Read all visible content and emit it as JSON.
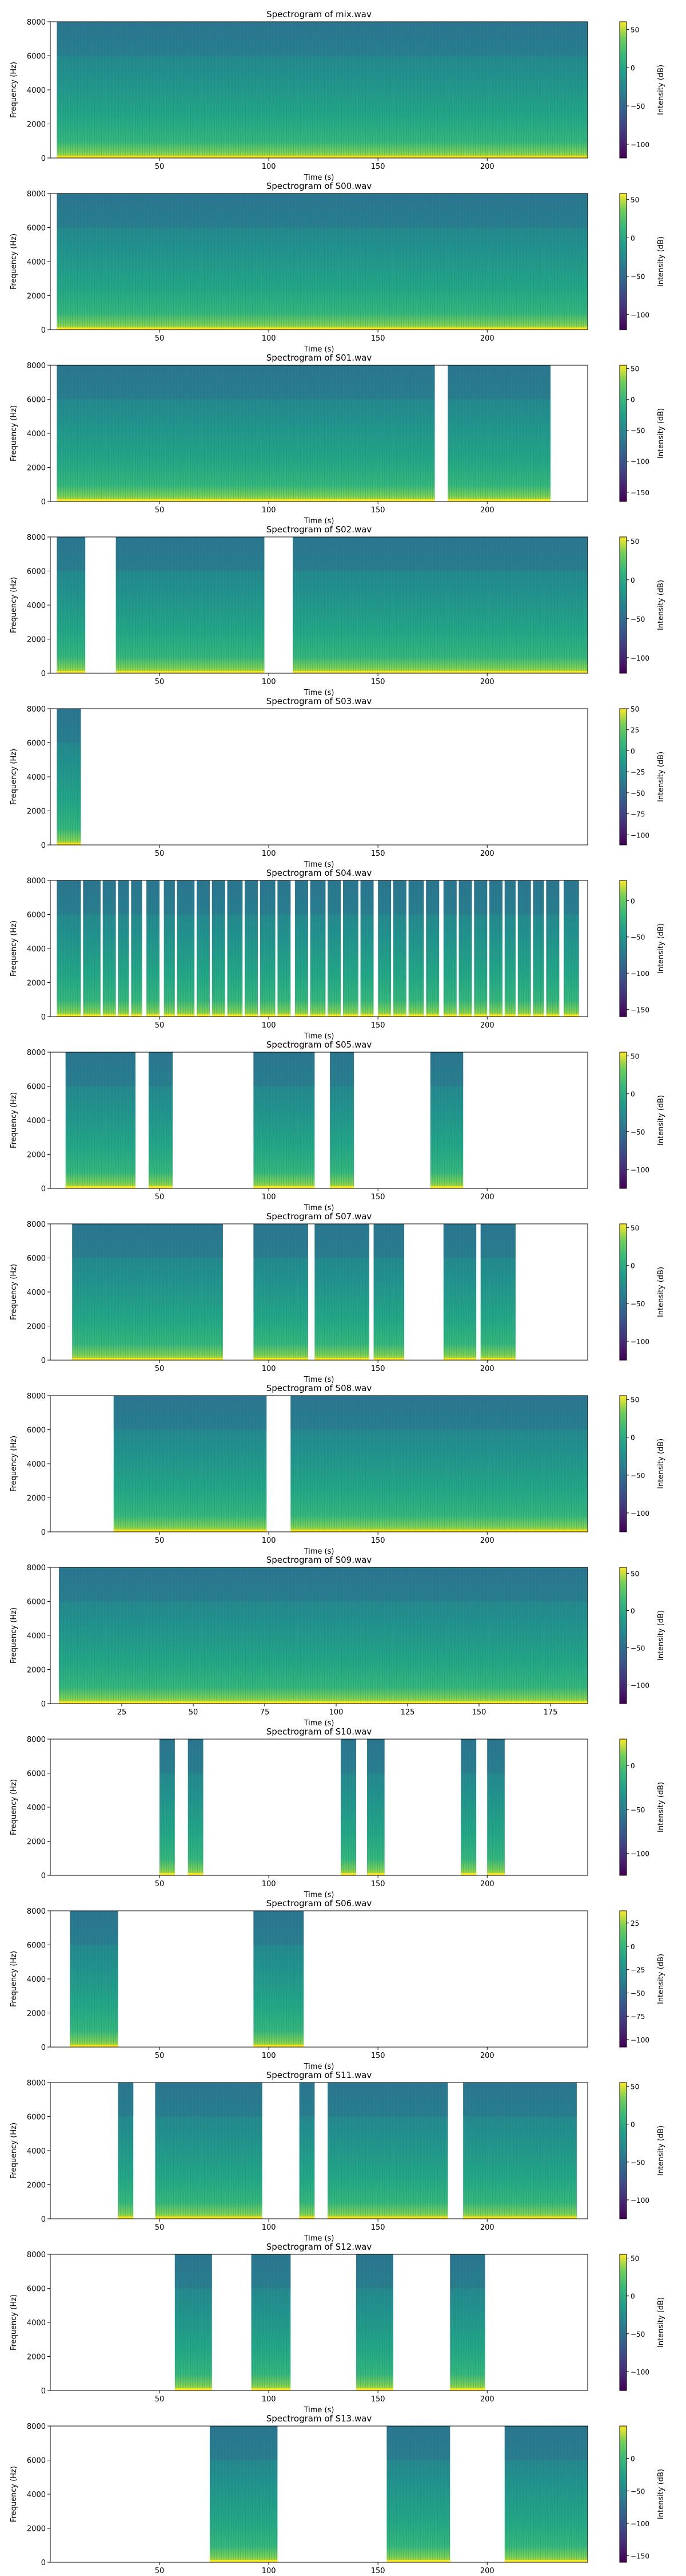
{
  "chart_data": {
    "type": "heatmap",
    "colormap": "viridis",
    "colors": {
      "low": "#440154",
      "mid": "#21918c",
      "high": "#fde725",
      "background": "#ffffff"
    },
    "grid": false,
    "panels": [
      {
        "title": "Spectrogram of mix.wav",
        "xlabel": "Time (s)",
        "ylabel": "Frequency (Hz)",
        "colorbar_label": "Intensity (dB)",
        "xlim": [
          0,
          246
        ],
        "xticks": [
          50,
          100,
          150,
          200
        ],
        "ylim": [
          0,
          8000
        ],
        "yticks": [
          0,
          2000,
          4000,
          6000,
          8000
        ],
        "clim": [
          -118,
          60
        ],
        "cticks": [
          50,
          0,
          -50,
          -100
        ],
        "active_segments": [
          [
            3,
            246
          ]
        ]
      },
      {
        "title": "Spectrogram of S00.wav",
        "xlabel": "Time (s)",
        "ylabel": "Frequency (Hz)",
        "colorbar_label": "Intensity (dB)",
        "xlim": [
          0,
          246
        ],
        "xticks": [
          50,
          100,
          150,
          200
        ],
        "ylim": [
          0,
          8000
        ],
        "yticks": [
          0,
          2000,
          4000,
          6000,
          8000
        ],
        "clim": [
          -120,
          58
        ],
        "cticks": [
          50,
          0,
          -50,
          -100
        ],
        "active_segments": [
          [
            3,
            246
          ]
        ]
      },
      {
        "title": "Spectrogram of S01.wav",
        "xlabel": "Time (s)",
        "ylabel": "Frequency (Hz)",
        "colorbar_label": "Intensity (dB)",
        "xlim": [
          0,
          246
        ],
        "xticks": [
          50,
          100,
          150,
          200
        ],
        "ylim": [
          0,
          8000
        ],
        "yticks": [
          0,
          2000,
          4000,
          6000,
          8000
        ],
        "clim": [
          -165,
          55
        ],
        "cticks": [
          50,
          0,
          -50,
          -100,
          -150
        ],
        "active_segments": [
          [
            3,
            176
          ],
          [
            182,
            229
          ]
        ]
      },
      {
        "title": "Spectrogram of S02.wav",
        "xlabel": "Time (s)",
        "ylabel": "Frequency (Hz)",
        "colorbar_label": "Intensity (dB)",
        "xlim": [
          0,
          246
        ],
        "xticks": [
          50,
          100,
          150,
          200
        ],
        "ylim": [
          0,
          8000
        ],
        "yticks": [
          0,
          2000,
          4000,
          6000,
          8000
        ],
        "clim": [
          -120,
          55
        ],
        "cticks": [
          50,
          0,
          -50,
          -100
        ],
        "active_segments": [
          [
            3,
            16
          ],
          [
            30,
            98
          ],
          [
            111,
            246
          ]
        ]
      },
      {
        "title": "Spectrogram of S03.wav",
        "xlabel": "Time (s)",
        "ylabel": "Frequency (Hz)",
        "colorbar_label": "Intensity (dB)",
        "xlim": [
          0,
          246
        ],
        "xticks": [
          50,
          100,
          150,
          200
        ],
        "ylim": [
          0,
          8000
        ],
        "yticks": [
          0,
          2000,
          4000,
          6000,
          8000
        ],
        "clim": [
          -112,
          50
        ],
        "cticks": [
          50,
          25,
          0,
          -25,
          -50,
          -75,
          -100
        ],
        "active_segments": [
          [
            3,
            14
          ]
        ]
      },
      {
        "title": "Spectrogram of S04.wav",
        "xlabel": "Time (s)",
        "ylabel": "Frequency (Hz)",
        "colorbar_label": "Intensity (dB)",
        "xlim": [
          0,
          246
        ],
        "xticks": [
          50,
          100,
          150,
          200
        ],
        "ylim": [
          0,
          8000
        ],
        "yticks": [
          0,
          2000,
          4000,
          6000,
          8000
        ],
        "clim": [
          -160,
          28
        ],
        "cticks": [
          0,
          -50,
          -100,
          -150
        ],
        "active_segments": [
          [
            3,
            14
          ],
          [
            15,
            23
          ],
          [
            24,
            30
          ],
          [
            31,
            36
          ],
          [
            37,
            42
          ],
          [
            44,
            50
          ],
          [
            52,
            57
          ],
          [
            58,
            66
          ],
          [
            67,
            73
          ],
          [
            74,
            80
          ],
          [
            81,
            88
          ],
          [
            89,
            95
          ],
          [
            96,
            103
          ],
          [
            104,
            110
          ],
          [
            112,
            118
          ],
          [
            119,
            126
          ],
          [
            127,
            133
          ],
          [
            134,
            141
          ],
          [
            142,
            148
          ],
          [
            150,
            156
          ],
          [
            157,
            163
          ],
          [
            164,
            171
          ],
          [
            172,
            178
          ],
          [
            180,
            186
          ],
          [
            187,
            193
          ],
          [
            194,
            200
          ],
          [
            201,
            207
          ],
          [
            208,
            213
          ],
          [
            214,
            220
          ],
          [
            221,
            226
          ],
          [
            227,
            233
          ],
          [
            235,
            242
          ]
        ]
      },
      {
        "title": "Spectrogram of S05.wav",
        "xlabel": "Time (s)",
        "ylabel": "Frequency (Hz)",
        "colorbar_label": "Intensity (dB)",
        "xlim": [
          0,
          246
        ],
        "xticks": [
          50,
          100,
          150,
          200
        ],
        "ylim": [
          0,
          8000
        ],
        "yticks": [
          0,
          2000,
          4000,
          6000,
          8000
        ],
        "clim": [
          -125,
          55
        ],
        "cticks": [
          50,
          0,
          -50,
          -100
        ],
        "active_segments": [
          [
            7,
            39
          ],
          [
            45,
            56
          ],
          [
            93,
            121
          ],
          [
            128,
            139
          ],
          [
            174,
            189
          ]
        ]
      },
      {
        "title": "Spectrogram of S07.wav",
        "xlabel": "Time (s)",
        "ylabel": "Frequency (Hz)",
        "colorbar_label": "Intensity (dB)",
        "xlim": [
          0,
          246
        ],
        "xticks": [
          50,
          100,
          150,
          200
        ],
        "ylim": [
          0,
          8000
        ],
        "yticks": [
          0,
          2000,
          4000,
          6000,
          8000
        ],
        "clim": [
          -125,
          55
        ],
        "cticks": [
          50,
          0,
          -50,
          -100
        ],
        "active_segments": [
          [
            10,
            79
          ],
          [
            93,
            118
          ],
          [
            121,
            146
          ],
          [
            148,
            162
          ],
          [
            180,
            195
          ],
          [
            197,
            213
          ]
        ]
      },
      {
        "title": "Spectrogram of S08.wav",
        "xlabel": "Time (s)",
        "ylabel": "Frequency (Hz)",
        "colorbar_label": "Intensity (dB)",
        "xlim": [
          0,
          246
        ],
        "xticks": [
          50,
          100,
          150,
          200
        ],
        "ylim": [
          0,
          8000
        ],
        "yticks": [
          0,
          2000,
          4000,
          6000,
          8000
        ],
        "clim": [
          -125,
          55
        ],
        "cticks": [
          50,
          0,
          -50,
          -100
        ],
        "active_segments": [
          [
            29,
            99
          ],
          [
            110,
            246
          ]
        ]
      },
      {
        "title": "Spectrogram of S09.wav",
        "xlabel": "Time (s)",
        "ylabel": "Frequency (Hz)",
        "colorbar_label": "Intensity (dB)",
        "xlim": [
          0,
          188
        ],
        "xticks": [
          25,
          50,
          75,
          100,
          125,
          150,
          175
        ],
        "ylim": [
          0,
          8000
        ],
        "yticks": [
          0,
          2000,
          4000,
          6000,
          8000
        ],
        "clim": [
          -125,
          58
        ],
        "cticks": [
          50,
          0,
          -50,
          -100
        ],
        "active_segments": [
          [
            3,
            188
          ]
        ]
      },
      {
        "title": "Spectrogram of S10.wav",
        "xlabel": "Time (s)",
        "ylabel": "Frequency (Hz)",
        "colorbar_label": "Intensity (dB)",
        "xlim": [
          0,
          246
        ],
        "xticks": [
          50,
          100,
          150,
          200
        ],
        "ylim": [
          0,
          8000
        ],
        "yticks": [
          0,
          2000,
          4000,
          6000,
          8000
        ],
        "clim": [
          -125,
          30
        ],
        "cticks": [
          0,
          -50,
          -100
        ],
        "active_segments": [
          [
            50,
            57
          ],
          [
            63,
            70
          ],
          [
            133,
            140
          ],
          [
            145,
            153
          ],
          [
            188,
            195
          ],
          [
            200,
            208
          ]
        ]
      },
      {
        "title": "Spectrogram of S06.wav",
        "xlabel": "Time (s)",
        "ylabel": "Frequency (Hz)",
        "colorbar_label": "Intensity (dB)",
        "xlim": [
          0,
          246
        ],
        "xticks": [
          50,
          100,
          150,
          200
        ],
        "ylim": [
          0,
          8000
        ],
        "yticks": [
          0,
          2000,
          4000,
          6000,
          8000
        ],
        "clim": [
          -108,
          38
        ],
        "cticks": [
          25,
          0,
          -25,
          -50,
          -75,
          -100
        ],
        "active_segments": [
          [
            9,
            31
          ],
          [
            93,
            116
          ]
        ]
      },
      {
        "title": "Spectrogram of S11.wav",
        "xlabel": "Time (s)",
        "ylabel": "Frequency (Hz)",
        "colorbar_label": "Intensity (dB)",
        "xlim": [
          0,
          246
        ],
        "xticks": [
          50,
          100,
          150,
          200
        ],
        "ylim": [
          0,
          8000
        ],
        "yticks": [
          0,
          2000,
          4000,
          6000,
          8000
        ],
        "clim": [
          -125,
          55
        ],
        "cticks": [
          50,
          0,
          -50,
          -100
        ],
        "active_segments": [
          [
            31,
            38
          ],
          [
            48,
            97
          ],
          [
            114,
            121
          ],
          [
            127,
            182
          ],
          [
            189,
            241
          ]
        ]
      },
      {
        "title": "Spectrogram of S12.wav",
        "xlabel": "Time (s)",
        "ylabel": "Frequency (Hz)",
        "colorbar_label": "Intensity (dB)",
        "xlim": [
          0,
          246
        ],
        "xticks": [
          50,
          100,
          150,
          200
        ],
        "ylim": [
          0,
          8000
        ],
        "yticks": [
          0,
          2000,
          4000,
          6000,
          8000
        ],
        "clim": [
          -125,
          55
        ],
        "cticks": [
          50,
          0,
          -50,
          -100
        ],
        "active_segments": [
          [
            57,
            74
          ],
          [
            92,
            110
          ],
          [
            140,
            157
          ],
          [
            183,
            199
          ]
        ]
      },
      {
        "title": "Spectrogram of S13.wav",
        "xlabel": "Time (s)",
        "ylabel": "Frequency (Hz)",
        "colorbar_label": "Intensity (dB)",
        "xlim": [
          0,
          246
        ],
        "xticks": [
          50,
          100,
          150,
          200
        ],
        "ylim": [
          0,
          8000
        ],
        "yticks": [
          0,
          2000,
          4000,
          6000,
          8000
        ],
        "clim": [
          -160,
          50
        ],
        "cticks": [
          0,
          -50,
          -100,
          -150
        ],
        "active_segments": [
          [
            73,
            104
          ],
          [
            154,
            183
          ],
          [
            208,
            246
          ]
        ]
      }
    ]
  }
}
